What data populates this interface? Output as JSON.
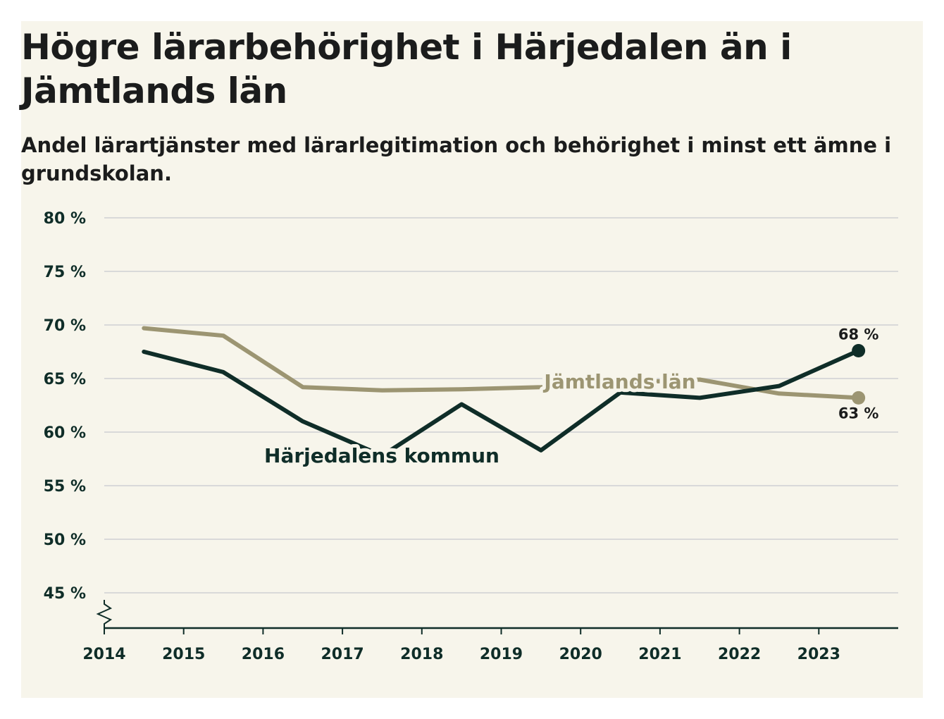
{
  "title": "Högre lärarbehörighet i Härjedalen än i Jämtlands län",
  "subtitle": "Andel lärartjänster med lärarlegitimation och behörighet i minst ett ämne i grundskolan.",
  "colors": {
    "background": "#f7f5eb",
    "harjedalen": "#0f2d28",
    "jamtland": "#9c9572",
    "grid": "#d9d9d9",
    "axis": "#0f2d28"
  },
  "chart_data": {
    "type": "line",
    "title": "Högre lärarbehörighet i Härjedalen än i Jämtlands län",
    "subtitle": "Andel lärartjänster med lärarlegitimation och behörighet i minst ett ämne i grundskolan.",
    "x": [
      2014.5,
      2015.5,
      2016.5,
      2017.5,
      2018.5,
      2019.5,
      2020.5,
      2021.5,
      2022.5,
      2023.5
    ],
    "x_ticks": [
      2014,
      2015,
      2016,
      2017,
      2018,
      2019,
      2020,
      2021,
      2022,
      2023
    ],
    "x_tick_labels": [
      "2014",
      "2015",
      "2016",
      "2017",
      "2018",
      "2019",
      "2020",
      "2021",
      "2022",
      "2023"
    ],
    "xlim": [
      2014,
      2024
    ],
    "ylim": [
      45,
      80
    ],
    "y_ticks": [
      45,
      50,
      55,
      60,
      65,
      70,
      75,
      80
    ],
    "y_tick_labels": [
      "45 %",
      "50 %",
      "55 %",
      "60 %",
      "65 %",
      "70 %",
      "75 %",
      "80 %"
    ],
    "axis_break": true,
    "series": [
      {
        "name": "Härjedalens kommun",
        "key": "harjedalen",
        "values": [
          67.5,
          65.6,
          61.0,
          57.8,
          62.6,
          58.3,
          63.7,
          63.2,
          64.3,
          67.6
        ],
        "end_label": "68 %"
      },
      {
        "name": "Jämtlands län",
        "key": "jamtland",
        "values": [
          69.7,
          69.0,
          64.2,
          63.9,
          64.0,
          64.2,
          64.6,
          64.9,
          63.6,
          63.2
        ],
        "end_label": "63 %"
      }
    ]
  }
}
